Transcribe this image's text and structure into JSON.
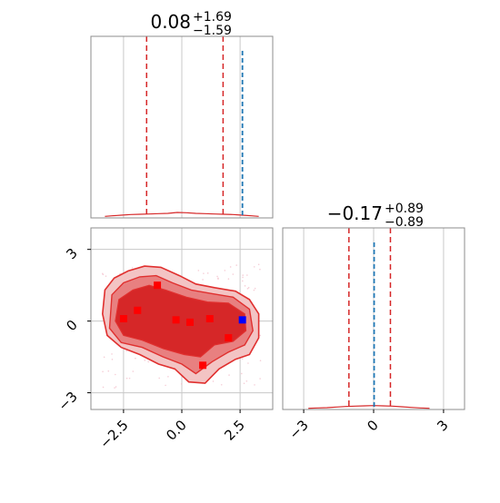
{
  "chart_data": {
    "type": "corner",
    "panels": [
      {
        "id": "marginal-1",
        "type": "histogram",
        "title_main": "0.08",
        "title_sup": "+1.69",
        "title_sub": "−1.59",
        "xlim": [
          -3.9,
          3.9
        ],
        "grid": true,
        "quantiles": [
          -1.51,
          0.08,
          1.77
        ],
        "truth_value": 2.6,
        "hist_x": [
          -3.3,
          -3.0,
          -2.6,
          -2.2,
          -1.8,
          -1.4,
          -1.0,
          -0.6,
          -0.2,
          0.2,
          0.6,
          1.0,
          1.4,
          1.8,
          2.2,
          2.6,
          3.0,
          3.3
        ],
        "hist_y": [
          0.002,
          0.004,
          0.006,
          0.008,
          0.009,
          0.01,
          0.011,
          0.012,
          0.015,
          0.014,
          0.012,
          0.011,
          0.01,
          0.009,
          0.008,
          0.006,
          0.004,
          0.002
        ]
      },
      {
        "id": "joint",
        "type": "contour-scatter",
        "xticks": [
          "−2.5",
          "0.0",
          "2.5"
        ],
        "xtick_values": [
          -2.5,
          0.0,
          2.5
        ],
        "yticks": [
          "3",
          "0",
          "−3"
        ],
        "ytick_values": [
          3,
          0,
          -3
        ],
        "xlim": [
          -3.9,
          3.9
        ],
        "ylim": [
          -3.7,
          3.9
        ],
        "grid": true,
        "samples": [
          {
            "x": -2.5,
            "y": 0.1
          },
          {
            "x": -1.9,
            "y": 0.45
          },
          {
            "x": -1.05,
            "y": 1.5
          },
          {
            "x": -0.25,
            "y": 0.05
          },
          {
            "x": 0.35,
            "y": -0.05
          },
          {
            "x": 1.2,
            "y": 0.1
          },
          {
            "x": 2.0,
            "y": -0.7
          },
          {
            "x": 0.9,
            "y": -1.85
          }
        ],
        "truth_point": {
          "x": 2.6,
          "y": 0.05
        }
      },
      {
        "id": "marginal-2",
        "type": "histogram",
        "title_main": "−0.17",
        "title_sup": "+0.89",
        "title_sub": "−0.89",
        "xticks": [
          "−3",
          "0",
          "3"
        ],
        "xtick_values": [
          -3,
          0,
          3
        ],
        "xlim": [
          -3.9,
          3.9
        ],
        "grid": true,
        "quantiles": [
          -1.06,
          -0.17,
          0.72
        ],
        "truth_value": 0.02,
        "hist_x": [
          -2.8,
          -2.4,
          -2.0,
          -1.6,
          -1.2,
          -0.8,
          -0.4,
          0.0,
          0.4,
          0.8,
          1.2,
          1.6,
          2.0,
          2.4
        ],
        "hist_y": [
          0.001,
          0.002,
          0.003,
          0.005,
          0.007,
          0.008,
          0.009,
          0.01,
          0.009,
          0.008,
          0.006,
          0.004,
          0.002,
          0.001
        ]
      }
    ]
  },
  "colors": {
    "contour_dark": "#d62728",
    "contour_mid": "#e88080",
    "contour_light": "#f3c4c4",
    "outline": "#e0302f",
    "quantile": "#d62728",
    "truth": "#1f77b4",
    "sample": "#ff0000",
    "truth_point": "#0000ff",
    "grid": "#c8c8c8",
    "frame": "#8c8c8c"
  }
}
